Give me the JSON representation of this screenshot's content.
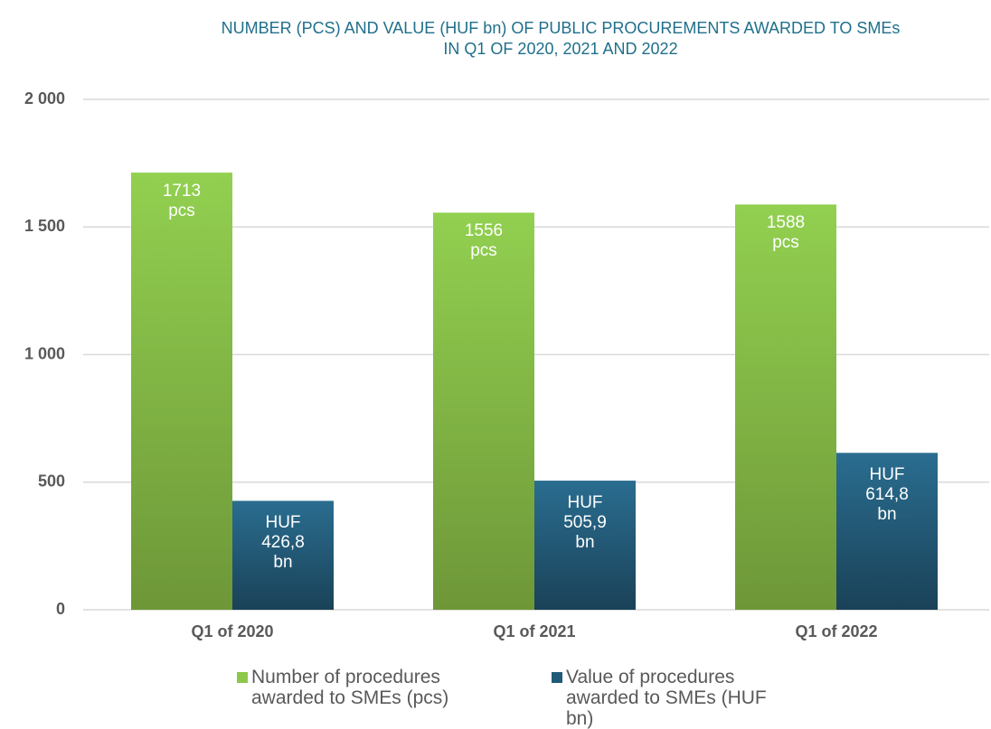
{
  "chart_data": {
    "type": "bar",
    "title": [
      "NUMBER (PCS) AND VALUE (HUF bn) OF PUBLIC PROCUREMENTS AWARDED TO SMEs",
      "IN Q1 OF 2020, 2021 AND 2022"
    ],
    "categories": [
      "Q1 of 2020",
      "Q1 of 2021",
      "Q1 of 2022"
    ],
    "series": [
      {
        "name": "Number of procedures awarded to SMEs (pcs)",
        "color": "#8cc84b",
        "values": [
          1713,
          1556,
          1588
        ],
        "value_labels": [
          "1713 pcs",
          "1556 pcs",
          "1588 pcs"
        ]
      },
      {
        "name": "Value of procedures awarded to SMEs (HUF bn)",
        "color": "#215a78",
        "values": [
          426.8,
          505.9,
          614.8
        ],
        "value_labels": [
          "HUF 426,8 bn",
          "HUF 505,9 bn",
          "HUF 614,8 bn"
        ]
      }
    ],
    "ylim": [
      0,
      2000
    ],
    "yticks": [
      0,
      500,
      {
        "value": 1000,
        "label": "1 000"
      },
      {
        "value": 1500,
        "label": "1 500"
      },
      {
        "value": 2000,
        "label": "2 000"
      }
    ],
    "grid": true
  }
}
